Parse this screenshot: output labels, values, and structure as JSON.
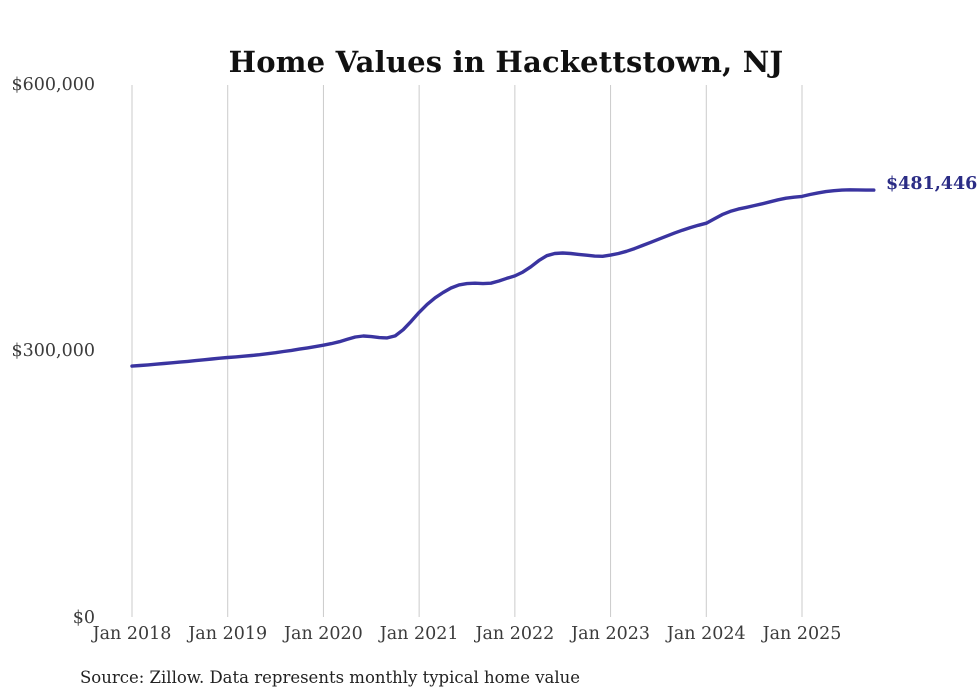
{
  "chart": {
    "title": "Home Values in Hackettstown, NJ",
    "source": "Source: Zillow. Data represents monthly typical home value",
    "colors": {
      "line": "#3a34a0",
      "end_label": "#2b2c85",
      "gridline": "#cbcbcb",
      "tick_text": "#3b3b3b",
      "title_text": "#111111",
      "source_text": "#222222",
      "background": "#ffffff"
    }
  },
  "chart_data": {
    "type": "line",
    "title": "Home Values in Hackettstown, NJ",
    "series_name": "Monthly typical home value",
    "x": [
      "2018-01",
      "2018-02",
      "2018-03",
      "2018-04",
      "2018-05",
      "2018-06",
      "2018-07",
      "2018-08",
      "2018-09",
      "2018-10",
      "2018-11",
      "2018-12",
      "2019-01",
      "2019-02",
      "2019-03",
      "2019-04",
      "2019-05",
      "2019-06",
      "2019-07",
      "2019-08",
      "2019-09",
      "2019-10",
      "2019-11",
      "2019-12",
      "2020-01",
      "2020-02",
      "2020-03",
      "2020-04",
      "2020-05",
      "2020-06",
      "2020-07",
      "2020-08",
      "2020-09",
      "2020-10",
      "2020-11",
      "2020-12",
      "2021-01",
      "2021-02",
      "2021-03",
      "2021-04",
      "2021-05",
      "2021-06",
      "2021-07",
      "2021-08",
      "2021-09",
      "2021-10",
      "2021-11",
      "2021-12",
      "2022-01",
      "2022-02",
      "2022-03",
      "2022-04",
      "2022-05",
      "2022-06",
      "2022-07",
      "2022-08",
      "2022-09",
      "2022-10",
      "2022-11",
      "2022-12",
      "2023-01",
      "2023-02",
      "2023-03",
      "2023-04",
      "2023-05",
      "2023-06",
      "2023-07",
      "2023-08",
      "2023-09",
      "2023-10",
      "2023-11",
      "2023-12",
      "2024-01",
      "2024-02",
      "2024-03",
      "2024-04",
      "2024-05",
      "2024-06",
      "2024-07",
      "2024-08",
      "2024-09",
      "2024-10",
      "2024-11",
      "2024-12",
      "2025-01",
      "2025-02",
      "2025-03",
      "2025-04",
      "2025-05",
      "2025-06",
      "2025-07",
      "2025-08",
      "2025-09",
      "2025-10"
    ],
    "values": [
      283000,
      283600,
      284300,
      285100,
      285900,
      286700,
      287500,
      288300,
      289200,
      290100,
      291000,
      291900,
      292700,
      293400,
      294100,
      294900,
      295800,
      296900,
      298100,
      299400,
      300700,
      302100,
      303500,
      305000,
      306500,
      308300,
      310500,
      313200,
      315800,
      316900,
      316200,
      315100,
      314800,
      317000,
      324000,
      333500,
      343500,
      352500,
      360000,
      366000,
      371000,
      374500,
      376000,
      376500,
      376000,
      376500,
      379000,
      382000,
      384700,
      389000,
      395000,
      402000,
      407500,
      410000,
      410500,
      410000,
      409000,
      408000,
      407000,
      406800,
      408200,
      410000,
      412500,
      415500,
      419000,
      422500,
      426000,
      429500,
      433000,
      436200,
      439200,
      441800,
      444100,
      449000,
      453800,
      457500,
      460000,
      462000,
      464000,
      466000,
      468300,
      470500,
      472300,
      473500,
      474400,
      476500,
      478300,
      479800,
      480800,
      481500,
      481800,
      481700,
      481500,
      481446
    ],
    "x_tick_labels": [
      "Jan 2018",
      "Jan 2019",
      "Jan 2020",
      "Jan 2021",
      "Jan 2022",
      "Jan 2023",
      "Jan 2024",
      "Jan 2025"
    ],
    "y_tick_labels": [
      "$0",
      "$300,000",
      "$600,000"
    ],
    "ylim": [
      0,
      600000
    ],
    "xlabel": "",
    "ylabel": "",
    "grid": "vertical-only",
    "legend": "none",
    "end_annotation": "$481,446",
    "last_value": 481446
  }
}
